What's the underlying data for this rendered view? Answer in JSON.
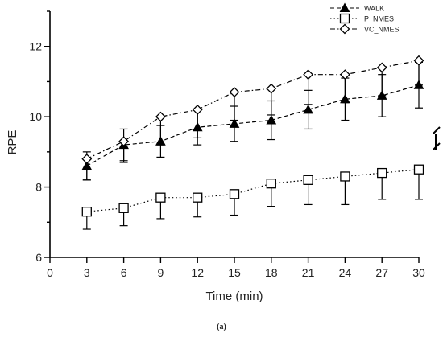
{
  "caption": "(a)",
  "chart_data": {
    "type": "line",
    "xlabel": "Time (min)",
    "ylabel": "RPE",
    "xlim": [
      0,
      30
    ],
    "ylim": [
      6,
      13
    ],
    "xticks": [
      0,
      3,
      6,
      9,
      12,
      15,
      18,
      21,
      24,
      27,
      30
    ],
    "yticks": [
      6,
      8,
      10,
      12
    ],
    "x": [
      3,
      6,
      9,
      12,
      15,
      18,
      21,
      24,
      27,
      30
    ],
    "legend_position": "top-right",
    "series": [
      {
        "name": "WALK",
        "marker": "triangle",
        "line_style": "dashed",
        "values": [
          8.6,
          9.2,
          9.3,
          9.7,
          9.8,
          9.9,
          10.2,
          10.5,
          10.6,
          10.9
        ],
        "error": [
          0.4,
          0.45,
          0.45,
          0.5,
          0.5,
          0.55,
          0.55,
          0.6,
          0.6,
          0.65
        ]
      },
      {
        "name": "P_NMES",
        "marker": "square",
        "line_style": "dotted",
        "values": [
          7.3,
          7.4,
          7.7,
          7.7,
          7.8,
          8.1,
          8.2,
          8.3,
          8.4,
          8.5
        ],
        "error": [
          0.5,
          0.5,
          0.6,
          0.55,
          0.6,
          0.65,
          0.7,
          0.8,
          0.75,
          0.85
        ]
      },
      {
        "name": "VC_NMES",
        "marker": "diamond",
        "line_style": "dashdot",
        "values": [
          8.8,
          9.3,
          10.0,
          10.2,
          10.7,
          10.8,
          11.2,
          11.2,
          11.4,
          11.6
        ],
        "error": [
          0.6,
          0.6,
          0.8,
          0.8,
          0.8,
          0.75,
          0.85,
          0.8,
          0.8,
          0.7
        ]
      }
    ]
  }
}
